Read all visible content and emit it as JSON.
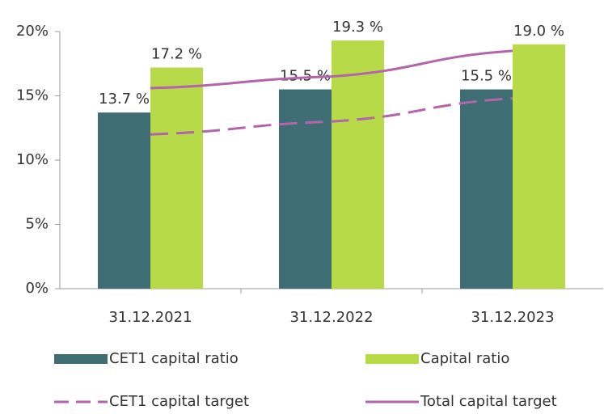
{
  "chart_data": {
    "type": "bar",
    "categories": [
      "31.12.2021",
      "31.12.2022",
      "31.12.2023"
    ],
    "series": [
      {
        "name": "CET1 capital ratio",
        "color": "#3e6d74",
        "values": [
          13.7,
          15.5,
          15.5
        ],
        "value_labels": [
          "13.7 %",
          "15.5 %",
          "15.5 %"
        ]
      },
      {
        "name": "Capital ratio",
        "color": "#b7da48",
        "values": [
          17.2,
          19.3,
          19.0
        ],
        "value_labels": [
          "17.2 %",
          "19.3 %",
          "19.0 %"
        ]
      },
      {
        "name": "CET1 capital target",
        "type": "line",
        "dashed": true,
        "color": "#b463ad",
        "values": [
          12.0,
          13.0,
          14.8
        ]
      },
      {
        "name": "Total capital target",
        "type": "line",
        "color": "#b463ad",
        "values": [
          15.6,
          16.5,
          18.5
        ]
      }
    ],
    "ylim": [
      0,
      20
    ],
    "yticks": [
      {
        "value": 0,
        "label": "0%"
      },
      {
        "value": 5,
        "label": "5%"
      },
      {
        "value": 10,
        "label": "10%"
      },
      {
        "value": 15,
        "label": "15%"
      },
      {
        "value": 20,
        "label": "20%"
      }
    ]
  }
}
